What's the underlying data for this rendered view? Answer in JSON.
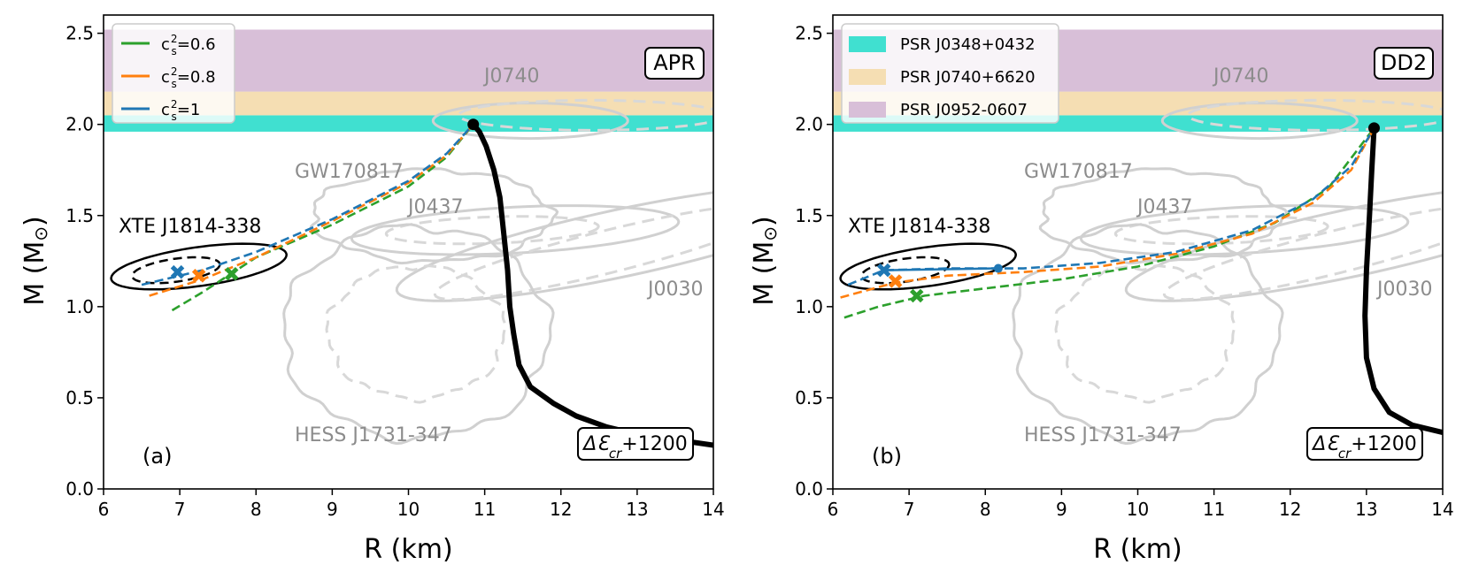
{
  "chart_data": [
    {
      "type": "line",
      "panel_letter": "(a)",
      "model_label": "APR",
      "xlabel": "R (km)",
      "ylabel": "M (M",
      "ylabel_sun": "⊙",
      "ylabel_close": ")",
      "xlim": [
        6,
        14
      ],
      "ylim": [
        0,
        2.6
      ],
      "xticks": [
        "6",
        "7",
        "8",
        "9",
        "10",
        "11",
        "12",
        "13",
        "14"
      ],
      "yticks": [
        "0.0",
        "0.5",
        "1.0",
        "1.5",
        "2.0",
        "2.5"
      ],
      "bands": [
        {
          "name": "PSR J0348+0432",
          "range": [
            1.96,
            2.05
          ],
          "color": "#40e0d0"
        },
        {
          "name": "PSR J0740+6620",
          "range": [
            2.05,
            2.18
          ],
          "color": "#f5deb3"
        },
        {
          "name": "PSR J0952-0607",
          "range": [
            2.18,
            2.52
          ],
          "color": "#d8bfd8"
        }
      ],
      "legend": [
        {
          "prefix": "c",
          "sub": "s",
          "sup": "2",
          "suffix": "=0.6",
          "color": "#2ca02c"
        },
        {
          "prefix": "c",
          "sub": "s",
          "sup": "2",
          "suffix": "=0.8",
          "color": "#ff7f0e"
        },
        {
          "prefix": "c",
          "sub": "s",
          "sup": "2",
          "suffix": "=1",
          "color": "#1f77b4"
        }
      ],
      "annotations": {
        "xte": "XTE J1814-338",
        "gw": "GW170817",
        "j0437": "J0437",
        "j0740": "J0740",
        "j0030": "J0030",
        "hess": "HESS J1731-347",
        "delta_symbol": "ΔƐ",
        "delta_sub": "cr",
        "delta_value": "+1200"
      },
      "main_curve": [
        [
          14.0,
          0.24
        ],
        [
          13.5,
          0.27
        ],
        [
          13.0,
          0.3
        ],
        [
          12.6,
          0.34
        ],
        [
          12.2,
          0.4
        ],
        [
          11.9,
          0.47
        ],
        [
          11.6,
          0.56
        ],
        [
          11.45,
          0.68
        ],
        [
          11.38,
          0.85
        ],
        [
          11.33,
          1.0
        ],
        [
          11.3,
          1.2
        ],
        [
          11.25,
          1.4
        ],
        [
          11.2,
          1.6
        ],
        [
          11.12,
          1.75
        ],
        [
          11.02,
          1.88
        ],
        [
          10.93,
          1.96
        ],
        [
          10.85,
          2.0
        ]
      ],
      "max_point": [
        10.85,
        2.0
      ],
      "series": [
        {
          "name": "c_s^2=0.6",
          "color": "#2ca02c",
          "points": [
            [
              6.9,
              0.98
            ],
            [
              7.3,
              1.08
            ],
            [
              8.0,
              1.27
            ],
            [
              9.0,
              1.45
            ],
            [
              10.0,
              1.66
            ],
            [
              10.5,
              1.82
            ],
            [
              10.85,
              2.0
            ]
          ]
        },
        {
          "name": "c_s^2=0.8",
          "color": "#ff7f0e",
          "points": [
            [
              6.6,
              1.06
            ],
            [
              7.3,
              1.15
            ],
            [
              8.0,
              1.27
            ],
            [
              9.0,
              1.47
            ],
            [
              10.0,
              1.68
            ],
            [
              10.5,
              1.83
            ],
            [
              10.85,
              2.0
            ]
          ]
        },
        {
          "name": "c_s^2=1",
          "color": "#1f77b4",
          "points": [
            [
              6.5,
              1.12
            ],
            [
              7.3,
              1.2
            ],
            [
              8.0,
              1.3
            ],
            [
              9.0,
              1.48
            ],
            [
              10.0,
              1.69
            ],
            [
              10.5,
              1.84
            ],
            [
              10.85,
              2.0
            ]
          ]
        }
      ],
      "markers": [
        {
          "x": 6.97,
          "y": 1.19,
          "color": "#1f77b4"
        },
        {
          "x": 7.25,
          "y": 1.17,
          "color": "#ff7f0e"
        },
        {
          "x": 7.68,
          "y": 1.18,
          "color": "#2ca02c"
        }
      ],
      "branch": null
    },
    {
      "type": "line",
      "panel_letter": "(b)",
      "model_label": "DD2",
      "xlabel": "R (km)",
      "ylabel": "M (M",
      "ylabel_sun": "⊙",
      "ylabel_close": ")",
      "xlim": [
        6,
        14
      ],
      "ylim": [
        0,
        2.6
      ],
      "xticks": [
        "6",
        "7",
        "8",
        "9",
        "10",
        "11",
        "12",
        "13",
        "14"
      ],
      "yticks": [
        "0.0",
        "0.5",
        "1.0",
        "1.5",
        "2.0",
        "2.5"
      ],
      "bands": [
        {
          "name": "PSR J0348+0432",
          "range": [
            1.96,
            2.05
          ],
          "color": "#40e0d0"
        },
        {
          "name": "PSR J0740+6620",
          "range": [
            2.05,
            2.18
          ],
          "color": "#f5deb3"
        },
        {
          "name": "PSR J0952-0607",
          "range": [
            2.18,
            2.52
          ],
          "color": "#d8bfd8"
        }
      ],
      "legend": [
        {
          "label": "PSR J0348+0432",
          "color": "#40e0d0"
        },
        {
          "label": "PSR J0740+6620",
          "color": "#f5deb3"
        },
        {
          "label": "PSR J0952-0607",
          "color": "#d8bfd8"
        }
      ],
      "annotations": {
        "xte": "XTE J1814-338",
        "gw": "GW170817",
        "j0437": "J0437",
        "j0740": "J0740",
        "j0030": "J0030",
        "hess": "HESS J1731-347",
        "delta_symbol": "ΔƐ",
        "delta_sub": "cr",
        "delta_value": "+1200"
      },
      "main_curve": [
        [
          14.0,
          0.31
        ],
        [
          13.6,
          0.35
        ],
        [
          13.3,
          0.42
        ],
        [
          13.1,
          0.55
        ],
        [
          13.0,
          0.72
        ],
        [
          12.98,
          0.95
        ],
        [
          13.0,
          1.2
        ],
        [
          13.04,
          1.5
        ],
        [
          13.07,
          1.75
        ],
        [
          13.1,
          1.98
        ]
      ],
      "max_point": [
        13.1,
        1.98
      ],
      "series": [
        {
          "name": "c_s^2=0.6",
          "color": "#2ca02c",
          "points": [
            [
              6.15,
              0.94
            ],
            [
              6.6,
              1.0
            ],
            [
              7.2,
              1.06
            ],
            [
              8.0,
              1.1
            ],
            [
              9.0,
              1.15
            ],
            [
              10.0,
              1.22
            ],
            [
              11.0,
              1.33
            ],
            [
              11.8,
              1.46
            ],
            [
              12.5,
              1.65
            ],
            [
              13.1,
              1.98
            ]
          ]
        },
        {
          "name": "c_s^2=0.8",
          "color": "#ff7f0e",
          "points": [
            [
              6.1,
              1.05
            ],
            [
              6.8,
              1.13
            ],
            [
              7.5,
              1.17
            ],
            [
              8.5,
              1.19
            ],
            [
              9.5,
              1.22
            ],
            [
              10.5,
              1.29
            ],
            [
              11.5,
              1.4
            ],
            [
              12.3,
              1.57
            ],
            [
              12.8,
              1.75
            ],
            [
              13.1,
              1.98
            ]
          ]
        },
        {
          "name": "c_s^2=1",
          "color": "#1f77b4",
          "points": [
            [
              6.2,
              1.12
            ],
            [
              6.67,
              1.2
            ],
            [
              7.5,
              1.21
            ],
            [
              8.5,
              1.21
            ],
            [
              9.5,
              1.24
            ],
            [
              10.5,
              1.3
            ],
            [
              11.5,
              1.42
            ],
            [
              12.3,
              1.59
            ],
            [
              12.8,
              1.77
            ],
            [
              13.1,
              1.98
            ]
          ]
        }
      ],
      "markers": [
        {
          "x": 6.67,
          "y": 1.2,
          "color": "#1f77b4"
        },
        {
          "x": 6.82,
          "y": 1.14,
          "color": "#ff7f0e"
        },
        {
          "x": 7.1,
          "y": 1.06,
          "color": "#2ca02c"
        }
      ],
      "branch": {
        "from": [
          6.67,
          1.2
        ],
        "to": [
          8.17,
          1.21
        ],
        "color": "#1f77b4"
      }
    }
  ]
}
